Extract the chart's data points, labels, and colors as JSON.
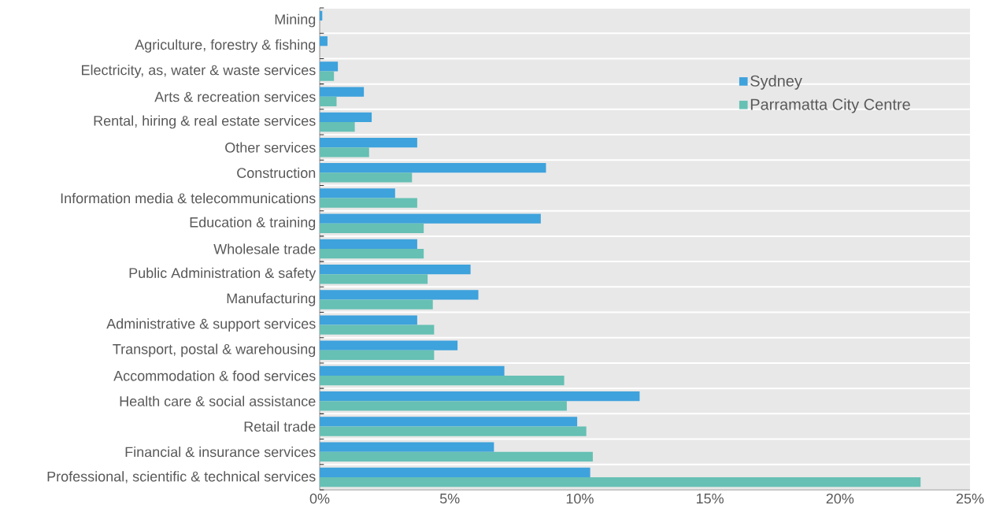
{
  "chart_data": {
    "type": "bar",
    "orientation": "horizontal",
    "categories": [
      "Mining",
      "Agriculture, forestry & fishing",
      "Electricity, as, water & waste services",
      "Arts & recreation services",
      "Rental, hiring & real estate services",
      "Other services",
      "Construction",
      "Information media & telecommunications",
      "Education & training",
      "Wholesale trade",
      "Public Administration & safety",
      "Manufacturing",
      "Administrative & support services",
      "Transport, postal & warehousing",
      "Accommodation & food services",
      "Health care & social assistance",
      "Retail trade",
      "Financial & insurance services",
      "Professional, scientific & technical services"
    ],
    "series": [
      {
        "name": "Sydney",
        "color": "#3ea2dc",
        "values": [
          0.1,
          0.3,
          0.7,
          1.7,
          2.0,
          3.75,
          8.7,
          2.9,
          8.5,
          3.75,
          5.8,
          6.1,
          3.75,
          5.3,
          7.1,
          12.3,
          9.9,
          6.7,
          10.4
        ]
      },
      {
        "name": "Parramatta City Centre",
        "color": "#66c0b4",
        "values": [
          0,
          0,
          0.55,
          0.65,
          1.35,
          1.9,
          3.55,
          3.75,
          4.0,
          4.0,
          4.15,
          4.35,
          4.4,
          4.4,
          9.4,
          9.5,
          10.25,
          10.5,
          23.1
        ]
      }
    ],
    "xlim": [
      0,
      25
    ],
    "xticks": [
      {
        "value": 0,
        "label": "0%"
      },
      {
        "value": 5,
        "label": "5%"
      },
      {
        "value": 10,
        "label": "10%"
      },
      {
        "value": 15,
        "label": "15%"
      },
      {
        "value": 20,
        "label": "20%"
      },
      {
        "value": 25,
        "label": "25%"
      }
    ],
    "grid": "y",
    "legend": "top right"
  }
}
